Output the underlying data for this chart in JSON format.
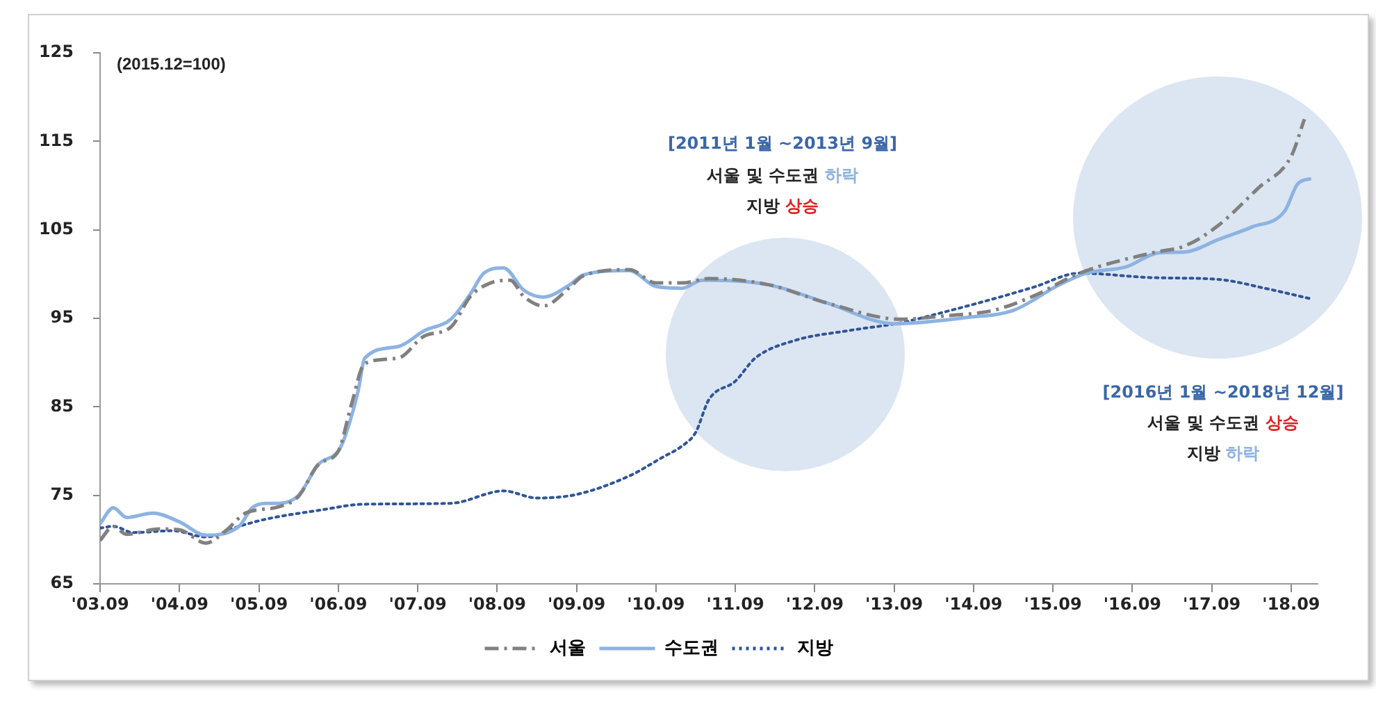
{
  "chart_data": {
    "type": "line",
    "xlim": [
      "2003-09",
      "2019-01"
    ],
    "xticks": [
      {
        "value": "2003-09",
        "label": "'03.09"
      },
      {
        "value": "2004-09",
        "label": "'04.09"
      },
      {
        "value": "2005-09",
        "label": "'05.09"
      },
      {
        "value": "2006-09",
        "label": "'06.09"
      },
      {
        "value": "2007-09",
        "label": "'07.09"
      },
      {
        "value": "2008-09",
        "label": "'08.09"
      },
      {
        "value": "2009-09",
        "label": "'09.09"
      },
      {
        "value": "2010-09",
        "label": "'10.09"
      },
      {
        "value": "2011-09",
        "label": "'11.09"
      },
      {
        "value": "2012-09",
        "label": "'12.09"
      },
      {
        "value": "2013-09",
        "label": "'13.09"
      },
      {
        "value": "2014-09",
        "label": "'14.09"
      },
      {
        "value": "2015-09",
        "label": "'15.09"
      },
      {
        "value": "2016-09",
        "label": "'16.09"
      },
      {
        "value": "2017-09",
        "label": "'17.09"
      },
      {
        "value": "2018-09",
        "label": "'18.09"
      }
    ],
    "ylim": [
      65,
      125
    ],
    "yticks": [
      65,
      75,
      85,
      95,
      105,
      115,
      125
    ],
    "grid": false,
    "legend": "bottom",
    "marker": "none",
    "annotations": [
      "(2015.12=100)",
      "[2011년 1월 ~2013년 9월]",
      "서울 및 수도권 하락",
      "지방 상승",
      "[2016년 1월 ~2018년 12월]",
      "서울 및 수도권 상승",
      "지방 하락"
    ],
    "series": [
      {
        "name": "서울",
        "color": "#808080",
        "line_style": "dashed",
        "x": [
          "2003-09",
          "2003-11",
          "2004-01",
          "2004-06",
          "2004-09",
          "2005-01",
          "2005-04",
          "2005-07",
          "2005-12",
          "2006-03",
          "2006-06",
          "2006-09",
          "2006-11",
          "2007-01",
          "2007-06",
          "2007-10",
          "2008-02",
          "2008-05",
          "2008-08",
          "2008-11",
          "2009-01",
          "2009-04",
          "2009-08",
          "2009-10",
          "2010-05",
          "2010-09",
          "2011-01",
          "2011-05",
          "2012-02",
          "2012-11",
          "2013-10",
          "2014-05",
          "2014-12",
          "2015-06",
          "2016-01",
          "2016-12",
          "2017-05",
          "2017-10",
          "2018-04",
          "2018-09",
          "2018-11"
        ],
        "values": [
          69.9,
          71.5,
          70.6,
          71.2,
          71.1,
          69.6,
          71,
          73,
          73.7,
          74.9,
          78.5,
          80,
          85.3,
          89.9,
          90.5,
          93,
          94,
          97.5,
          99,
          99.3,
          97.5,
          96.4,
          98.5,
          99.8,
          100.5,
          99,
          99,
          99.5,
          98.8,
          96.7,
          94.9,
          95.3,
          95.9,
          97.5,
          100.1,
          102.4,
          103.2,
          105.5,
          109.7,
          113.3,
          117.5
        ]
      },
      {
        "name": "수도권",
        "color": "#8db3e2",
        "line_style": "solid",
        "x": [
          "2003-09",
          "2003-11",
          "2004-01",
          "2004-05",
          "2004-09",
          "2005-01",
          "2005-06",
          "2005-08",
          "2005-10",
          "2005-12",
          "2006-03",
          "2006-06",
          "2006-09",
          "2006-10",
          "2006-12",
          "2007-01",
          "2007-06",
          "2007-10",
          "2008-02",
          "2008-05",
          "2008-07",
          "2008-10",
          "2009-01",
          "2009-04",
          "2009-08",
          "2009-10",
          "2010-05",
          "2010-09",
          "2011-01",
          "2011-04",
          "2012-02",
          "2012-11",
          "2013-09",
          "2014-08",
          "2015-03",
          "2015-10",
          "2016-02",
          "2016-08",
          "2017-01",
          "2017-05",
          "2017-10",
          "2018-03",
          "2018-08",
          "2018-10",
          "2018-12"
        ],
        "values": [
          71.8,
          73.6,
          72.5,
          73,
          72,
          70.5,
          71.5,
          73.6,
          74.1,
          74.1,
          75,
          78.5,
          80,
          81.6,
          86.8,
          90.5,
          91.8,
          93.6,
          94.9,
          97.8,
          100.1,
          100.7,
          98.2,
          97.4,
          98.8,
          99.9,
          100.4,
          98.6,
          98.4,
          99.3,
          98.8,
          96.7,
          94.4,
          95.1,
          95.9,
          98.8,
          100.1,
          100.8,
          102.4,
          102.5,
          103.9,
          105.3,
          107.1,
          110.2,
          110.8
        ]
      },
      {
        "name": "지방",
        "color": "#2f5597",
        "line_style": "dotted",
        "x": [
          "2003-09",
          "2003-11",
          "2004-02",
          "2004-08",
          "2005-01",
          "2005-06",
          "2005-10",
          "2006-06",
          "2007-01",
          "2008-02",
          "2008-10",
          "2009-03",
          "2009-09",
          "2010-05",
          "2010-10",
          "2011-01",
          "2011-03",
          "2011-05",
          "2011-09",
          "2011-12",
          "2012-06",
          "2013-02",
          "2013-10",
          "2014-04",
          "2014-12",
          "2015-06",
          "2016-01",
          "2016-12",
          "2017-10",
          "2018-05",
          "2018-12"
        ],
        "values": [
          71.3,
          71.5,
          70.8,
          71,
          70.3,
          71.5,
          72.3,
          73.3,
          74,
          74.1,
          75.5,
          74.7,
          75.1,
          77.2,
          79.3,
          80.6,
          82.1,
          85.8,
          87.9,
          90.5,
          92.5,
          93.6,
          94.5,
          95.6,
          97.2,
          98.5,
          100.1,
          99.6,
          99.4,
          98.4,
          97.2
        ]
      }
    ]
  }
}
